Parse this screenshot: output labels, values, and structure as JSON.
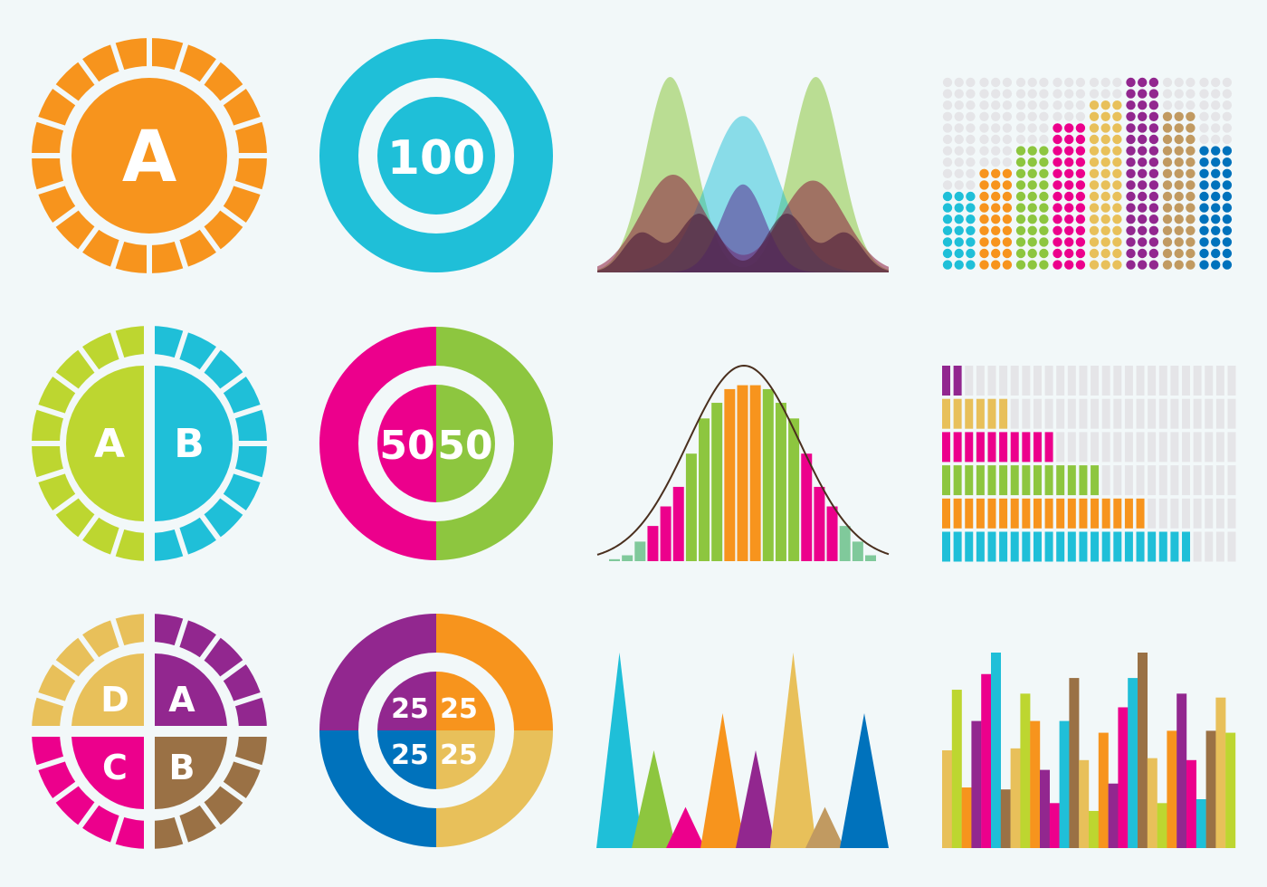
{
  "palette": {
    "background": "#f2f8f9",
    "gap": "#f2f8f9",
    "orange": "#f7941d",
    "cyan": "#1fbfd8",
    "lime": "#bdd630",
    "green": "#8dc63f",
    "magenta": "#ec008c",
    "purple": "#92278f",
    "gold": "#e8c05a",
    "brown": "#9a7145",
    "tan": "#c19a61",
    "blue": "#0072bc",
    "mint": "#80c99b",
    "empty": "#e5e5e8",
    "curve": "#4a2f1e"
  },
  "chart_data": [
    {
      "type": "pie",
      "id": "gear-single",
      "title": "",
      "labels": [
        "A"
      ],
      "values": [
        100
      ],
      "colors": [
        "#f7941d"
      ],
      "segments": 20
    },
    {
      "type": "pie",
      "id": "gear-two",
      "labels": [
        "A",
        "B"
      ],
      "values": [
        50,
        50
      ],
      "colors": [
        "#bdd630",
        "#1fbfd8"
      ],
      "segments": 20
    },
    {
      "type": "pie",
      "id": "gear-four",
      "labels": [
        "A",
        "B",
        "C",
        "D"
      ],
      "values": [
        25,
        25,
        25,
        25
      ],
      "colors": [
        "#92278f",
        "#9a7145",
        "#ec008c",
        "#e8c05a"
      ],
      "segments": 20
    },
    {
      "type": "pie",
      "id": "donut-100",
      "labels": [
        "100"
      ],
      "values": [
        100
      ],
      "colors": [
        "#1fbfd8"
      ]
    },
    {
      "type": "pie",
      "id": "donut-50-50",
      "labels": [
        "50",
        "50"
      ],
      "values": [
        50,
        50
      ],
      "colors": [
        "#ec008c",
        "#8dc63f"
      ]
    },
    {
      "type": "pie",
      "id": "donut-25x4",
      "labels": [
        "25",
        "25",
        "25",
        "25"
      ],
      "values": [
        25,
        25,
        25,
        25
      ],
      "colors": [
        "#f7941d",
        "#e8c05a",
        "#0072bc",
        "#92278f"
      ]
    },
    {
      "type": "area",
      "id": "overlapping-distributions",
      "series": [
        {
          "name": "green-bimodal",
          "color": "#8dc63f",
          "opacity": 0.55,
          "peaks": [
            {
              "x": 0.25,
              "height": 1.0,
              "width": 0.085
            },
            {
              "x": 0.75,
              "height": 1.0,
              "width": 0.085
            }
          ]
        },
        {
          "name": "cyan-wide",
          "color": "#1fbfd8",
          "opacity": 0.5,
          "peaks": [
            {
              "x": 0.5,
              "height": 0.8,
              "width": 0.12
            }
          ]
        },
        {
          "name": "maroon-bimodal",
          "color": "#8b1a3c",
          "opacity": 0.55,
          "peaks": [
            {
              "x": 0.26,
              "height": 0.5,
              "width": 0.11
            },
            {
              "x": 0.74,
              "height": 0.47,
              "width": 0.11
            }
          ]
        },
        {
          "name": "purple-center",
          "color": "#5b3b96",
          "opacity": 0.6,
          "peaks": [
            {
              "x": 0.5,
              "height": 0.45,
              "width": 0.075
            }
          ]
        },
        {
          "name": "dark-quad",
          "color": "#4a1a3a",
          "opacity": 0.6,
          "peaks": [
            {
              "x": 0.15,
              "height": 0.2,
              "width": 0.06
            },
            {
              "x": 0.35,
              "height": 0.3,
              "width": 0.07
            },
            {
              "x": 0.65,
              "height": 0.3,
              "width": 0.07
            },
            {
              "x": 0.85,
              "height": 0.2,
              "width": 0.06
            }
          ]
        }
      ]
    },
    {
      "type": "bar",
      "id": "dot-matrix-columns",
      "categories": [
        "1",
        "2",
        "3",
        "4",
        "5",
        "6",
        "7",
        "8"
      ],
      "values": [
        7,
        9,
        11,
        13,
        15,
        17,
        14,
        11
      ],
      "ylim": [
        0,
        17
      ],
      "colors": [
        "#1fbfd8",
        "#f7941d",
        "#8dc63f",
        "#ec008c",
        "#e8c05a",
        "#92278f",
        "#c19a61",
        "#0072bc"
      ]
    },
    {
      "type": "bar",
      "id": "normal-histogram",
      "categories": [
        "1",
        "2",
        "3",
        "4",
        "5",
        "6",
        "7",
        "8",
        "9",
        "10",
        "11",
        "12",
        "13",
        "14",
        "15",
        "16",
        "17",
        "18",
        "19",
        "20",
        "21"
      ],
      "values": [
        1,
        3,
        10,
        18,
        28,
        38,
        55,
        73,
        81,
        88,
        90,
        90,
        88,
        81,
        73,
        55,
        38,
        28,
        18,
        10,
        3
      ],
      "ylim": [
        0,
        100
      ],
      "bar_colors": [
        "#80c99b",
        "#80c99b",
        "#80c99b",
        "#ec008c",
        "#ec008c",
        "#ec008c",
        "#8dc63f",
        "#8dc63f",
        "#8dc63f",
        "#f7941d",
        "#f7941d",
        "#f7941d",
        "#8dc63f",
        "#8dc63f",
        "#8dc63f",
        "#ec008c",
        "#ec008c",
        "#ec008c",
        "#80c99b",
        "#80c99b",
        "#80c99b"
      ],
      "overlay": "normal-curve"
    },
    {
      "type": "bar",
      "orientation": "horizontal",
      "id": "progress-cells",
      "categories": [
        "purple",
        "gold",
        "magenta",
        "green",
        "orange",
        "cyan"
      ],
      "values": [
        2,
        6,
        10,
        14,
        18,
        22
      ],
      "xlim": [
        0,
        26
      ],
      "colors": [
        "#92278f",
        "#e8c05a",
        "#ec008c",
        "#8dc63f",
        "#f7941d",
        "#1fbfd8"
      ]
    },
    {
      "type": "area",
      "id": "triangle-peaks",
      "categories": [
        "1",
        "2",
        "3",
        "4",
        "5",
        "6",
        "7",
        "8"
      ],
      "values": [
        100,
        50,
        21,
        69,
        50,
        100,
        21,
        69
      ],
      "ylim": [
        0,
        100
      ],
      "colors": [
        "#1fbfd8",
        "#8dc63f",
        "#ec008c",
        "#f7941d",
        "#92278f",
        "#e8c05a",
        "#c19a61",
        "#0072bc"
      ]
    },
    {
      "type": "bar",
      "id": "multicolor-columns",
      "categories": [
        "1",
        "2",
        "3",
        "4",
        "5",
        "6",
        "7",
        "8",
        "9",
        "10",
        "11",
        "12",
        "13",
        "14",
        "15",
        "16",
        "17",
        "18",
        "19",
        "20",
        "21",
        "22",
        "23",
        "24",
        "25",
        "26",
        "27",
        "28",
        "29",
        "30"
      ],
      "values": [
        50,
        81,
        31,
        65,
        89,
        100,
        30,
        51,
        79,
        65,
        40,
        23,
        65,
        87,
        45,
        19,
        59,
        33,
        72,
        87,
        100,
        46,
        23,
        60,
        79,
        45,
        25,
        60,
        77,
        59
      ],
      "ylim": [
        0,
        100
      ],
      "colors": [
        "#e8c05a",
        "#bdd630",
        "#f7941d",
        "#92278f",
        "#ec008c",
        "#1fbfd8",
        "#9a7145",
        "#e8c05a",
        "#bdd630",
        "#f7941d",
        "#92278f",
        "#ec008c",
        "#1fbfd8",
        "#9a7145",
        "#e8c05a",
        "#bdd630",
        "#f7941d",
        "#92278f",
        "#ec008c",
        "#1fbfd8",
        "#9a7145",
        "#e8c05a",
        "#bdd630",
        "#f7941d",
        "#92278f",
        "#ec008c",
        "#1fbfd8",
        "#9a7145",
        "#e8c05a",
        "#bdd630"
      ]
    }
  ],
  "labels": {
    "gear_single": "A",
    "gear_two_left": "A",
    "gear_two_right": "B",
    "gear_four_tl": "D",
    "gear_four_tr": "A",
    "gear_four_bl": "C",
    "gear_four_br": "B",
    "donut_100": "100",
    "donut_50_left": "50",
    "donut_50_right": "50",
    "donut_25_tl": "25",
    "donut_25_tr": "25",
    "donut_25_bl": "25",
    "donut_25_br": "25"
  }
}
